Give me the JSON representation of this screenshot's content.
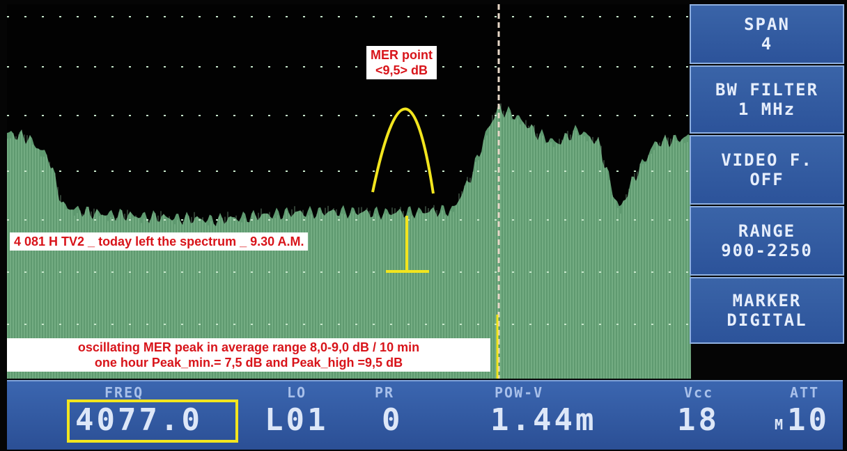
{
  "softkeys": [
    {
      "id": "span",
      "lines": [
        "SPAN",
        "4"
      ]
    },
    {
      "id": "bw-filter",
      "lines": [
        "BW FILTER",
        "1 MHz"
      ]
    },
    {
      "id": "video-filter",
      "lines": [
        "VIDEO F.",
        "OFF"
      ]
    },
    {
      "id": "range",
      "lines": [
        "RANGE",
        "900-2250"
      ]
    },
    {
      "id": "marker",
      "lines": [
        "MARKER",
        "DIGITAL"
      ]
    }
  ],
  "status": {
    "freq_label": "FREQ",
    "freq_value": "4077.0",
    "lo_label": "LO",
    "lo_value": "L01",
    "pr_label": "PR",
    "pr_value": "0",
    "pow_label": "POW-V",
    "pow_value": "1.44m",
    "vcc_label": "Vcc",
    "vcc_value": "18",
    "att_label": "ATT",
    "att_prefix": "M",
    "att_value": "10"
  },
  "annotations": {
    "mer_point_line1": "MER point",
    "mer_point_line2": "<9,5> dB",
    "tv2_note": "4 081 H TV2 _ today left the spectrum _ 9.30 A.M.",
    "oscillating_line1": "oscillating MER peak in average range 8,0-9,0 dB / 10 min",
    "oscillating_line2": "one hour Peak_min.= 7,5 dB and Peak_high =9,5 dB"
  },
  "colors": {
    "trace": "#7fbf8f",
    "button": "#2c539a",
    "annotation_text": "#d8141a",
    "highlight": "#f2e51e"
  }
}
